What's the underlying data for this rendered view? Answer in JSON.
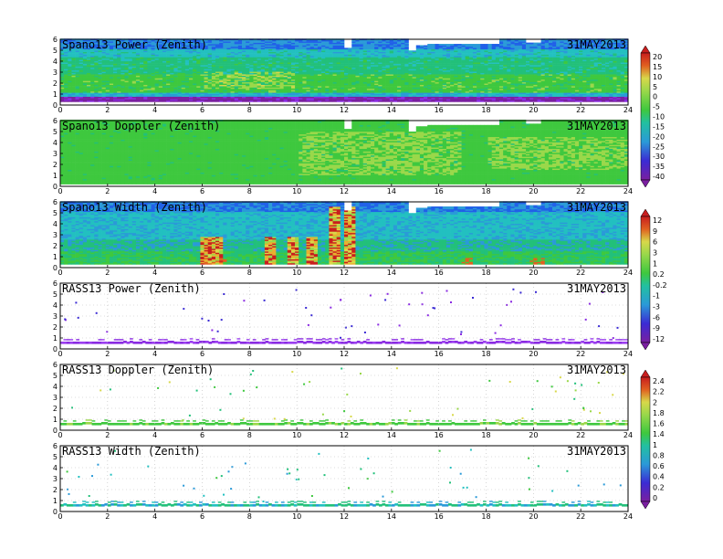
{
  "date": "31MAY2013",
  "x_ticks": [
    "0",
    "2",
    "4",
    "6",
    "8",
    "10",
    "12",
    "14",
    "16",
    "18",
    "20",
    "22",
    "24"
  ],
  "y_ticks": [
    "0",
    "1",
    "2",
    "3",
    "4",
    "5",
    "6"
  ],
  "panels": [
    {
      "title": "Spano13 Power (Zenith)",
      "kind": "power"
    },
    {
      "title": "Spano13 Doppler (Zenith)",
      "kind": "doppler"
    },
    {
      "title": "Spano13 Width (Zenith)",
      "kind": "width"
    },
    {
      "title": "RASS13 Power (Zenith)",
      "kind": "rass_power"
    },
    {
      "title": "RASS13 Doppler (Zenith)",
      "kind": "rass_doppler"
    },
    {
      "title": "RASS13 Width (Zenith)",
      "kind": "rass_width"
    }
  ],
  "colorbars": [
    {
      "name": "spano-power-doppler",
      "labels": [
        "20",
        "15",
        "10",
        "5",
        "0",
        "-5",
        "-10",
        "-15",
        "-20",
        "-25",
        "-30",
        "-35",
        "-40"
      ]
    },
    {
      "name": "spano-width-rass-power",
      "labels": [
        "12",
        "9",
        "6",
        "3",
        "1",
        "0.2",
        "-0.2",
        "-1",
        "-3",
        "-6",
        "-9",
        "-12"
      ]
    },
    {
      "name": "rass-doppler-width",
      "labels": [
        "2.4",
        "2.2",
        "2",
        "1.8",
        "1.6",
        "1.4",
        "1",
        "0.8",
        "0.6",
        "0.4",
        "0.2",
        "0"
      ]
    }
  ],
  "chart_data": {
    "type": "heatmap",
    "x_range": [
      0,
      24
    ],
    "y_range": [
      0,
      6
    ],
    "grid": true,
    "colors": [
      "#7a1fa0",
      "#8a2be2",
      "#3b2bd4",
      "#2060e8",
      "#2a9ad8",
      "#22c0c0",
      "#22c07a",
      "#3ec83e",
      "#9ad84a",
      "#d8d84a",
      "#e8b030",
      "#e06020",
      "#c81e1e"
    ]
  }
}
